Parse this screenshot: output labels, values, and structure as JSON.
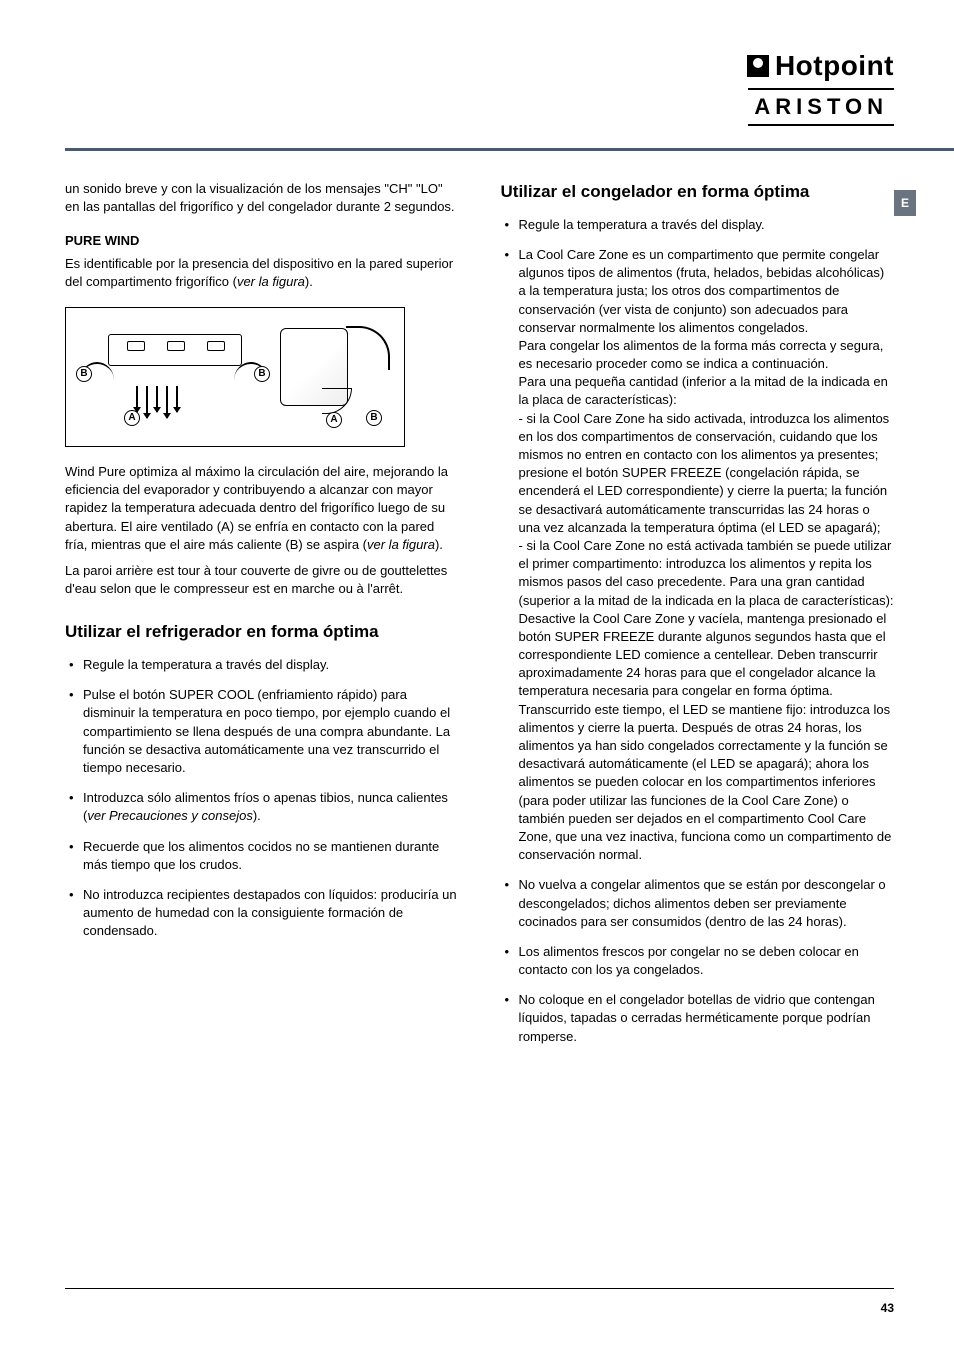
{
  "header": {
    "brand_top": "Hotpoint",
    "brand_bottom": "ARISTON",
    "side_tab": "E"
  },
  "left": {
    "intro_para": "un sonido breve y con la visualización de los mensajes \"CH\" \"LO\" en las pantallas del frigorífico y del congelador durante 2 segundos.",
    "pure_wind_title": "PURE WIND",
    "pure_wind_para": "Es identificable por la presencia del dispositivo en la pared superior del compartimento frigorífico (",
    "pure_wind_para_italic": "ver la figura",
    "pure_wind_para_end": ").",
    "figure_labels": {
      "A": "A",
      "B": "B"
    },
    "wind_desc_p1": "Wind Pure optimiza al máximo la circulación del aire, mejorando la eficiencia del evaporador y contribuyendo a alcanzar con mayor rapidez la temperatura adecuada dentro del frigorífico luego de su abertura. El aire ventilado (A) se enfría en contacto con la pared fría, mientras que el aire más caliente (B) se aspira (",
    "wind_desc_p1_italic": "ver la figura",
    "wind_desc_p1_end": ").",
    "wind_desc_p2": "La paroi arrière est tour à tour couverte de givre ou de gouttelettes d'eau selon que le compresseur est en marche ou à l'arrêt.",
    "section_refrig": "Utilizar el refrigerador en forma óptima",
    "refrig_bullets": [
      {
        "text": "Regule la temperatura a través del display."
      },
      {
        "text": "Pulse el botón SUPER COOL (enfriamiento rápido) para disminuir la temperatura en poco tiempo, por ejemplo cuando el compartimiento se llena después de una compra abundante. La función se desactiva automáticamente una vez transcurrido el tiempo necesario."
      },
      {
        "pre": "Introduzca sólo alimentos fríos o apenas tibios, nunca calientes (",
        "italic": "ver Precauciones y consejos",
        "post": ")."
      },
      {
        "text": "Recuerde que los alimentos cocidos no se mantienen durante más tiempo que los crudos."
      },
      {
        "text": "No introduzca recipientes destapados con líquidos: produciría un aumento de humedad con la consiguiente formación de condensado."
      }
    ]
  },
  "right": {
    "section_freezer": "Utilizar el congelador en forma óptima",
    "freezer_bullets": [
      {
        "text": "Regule la temperatura a través del display."
      },
      {
        "text": "La Cool Care Zone es un compartimento que permite congelar algunos tipos de alimentos (fruta, helados, bebidas alcohólicas) a la temperatura justa; los otros dos compartimentos de conservación (ver vista de conjunto) son adecuados para conservar normalmente los alimentos congelados.\nPara congelar los alimentos de la forma más correcta y segura, es necesario proceder como se indica a continuación.\nPara una pequeña cantidad (inferior a la mitad de la indicada en la placa de características):\n- si la Cool Care Zone ha sido activada, introduzca los alimentos en los dos compartimentos de conservación, cuidando que los mismos no entren en contacto con los alimentos ya presentes; presione el botón SUPER FREEZE (congelación rápida, se encenderá el LED correspondiente) y cierre la puerta; la función se desactivará automáticamente transcurridas las 24 horas o una vez alcanzada la temperatura óptima (el LED se apagará);\n- si la Cool Care Zone no está activada también se puede utilizar el primer compartimento: introduzca los alimentos y repita los mismos pasos del caso precedente. Para una gran cantidad (superior a la mitad de la indicada en la placa de características): Desactive la Cool Care Zone y vacíela, mantenga presionado el botón SUPER FREEZE durante algunos segundos hasta que el correspondiente LED comience a centellear. Deben transcurrir aproximadamente 24 horas para que el congelador alcance la temperatura necesaria para congelar en forma óptima.  Transcurrido este tiempo, el LED se mantiene fijo: introduzca los alimentos y cierre la puerta. Después de otras 24 horas, los alimentos ya han sido congelados correctamente y la función se desactivará automáticamente (el LED se apagará); ahora los alimentos se pueden colocar en los compartimentos inferiores (para poder utilizar las funciones de la Cool Care Zone) o también pueden ser dejados en el compartimento Cool Care Zone, que una vez inactiva, funciona como un compartimento de conservación normal."
      },
      {
        "text": "No vuelva a congelar alimentos que se están por descongelar o descongelados; dichos alimentos deben ser previamente cocinados para ser consumidos (dentro de las 24 horas)."
      },
      {
        "text": "Los alimentos frescos por congelar no se deben colocar en contacto con los ya congelados."
      },
      {
        "text": "No coloque en el congelador botellas de vidrio que contengan líquidos, tapadas o cerradas herméticamente porque podrían romperse."
      }
    ]
  },
  "page_number": "43"
}
